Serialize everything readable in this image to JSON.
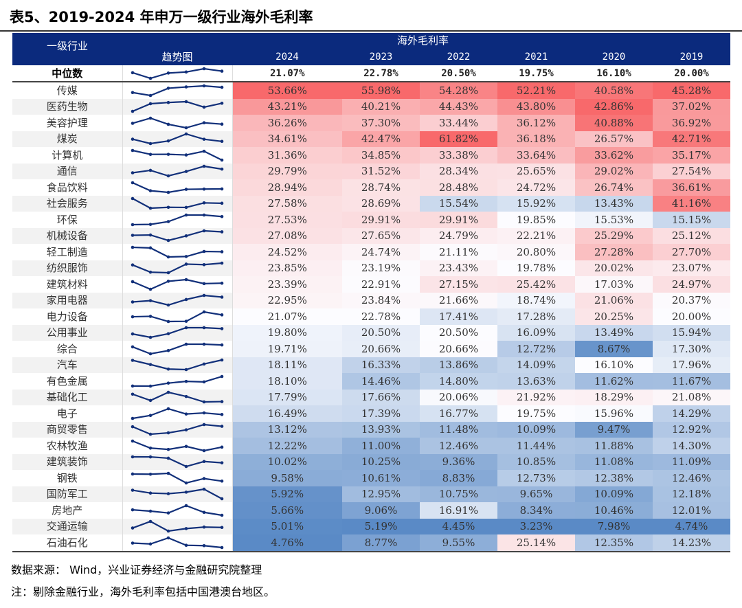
{
  "title": "表5、2019-2024 年申万一级行业海外毛利率",
  "header": {
    "industry": "一级行业",
    "trend": "趋势图",
    "group": "海外毛利率",
    "years": [
      "2024",
      "2023",
      "2022",
      "2021",
      "2020",
      "2019"
    ]
  },
  "colors": {
    "header_bg": "#0b2a7d",
    "high": "#f8696b",
    "mid": "#fcfcff",
    "low": "#5a8ac6",
    "sparkline": "#12307a"
  },
  "median": {
    "label": "中位数",
    "values": [
      "21.07%",
      "22.78%",
      "20.50%",
      "19.75%",
      "16.10%",
      "20.00%"
    ]
  },
  "rows": [
    {
      "name": "传媒",
      "values": [
        "53.66%",
        "55.98%",
        "54.28%",
        "52.21%",
        "40.58%",
        "45.28%"
      ]
    },
    {
      "name": "医药生物",
      "values": [
        "43.21%",
        "40.21%",
        "44.43%",
        "43.80%",
        "42.86%",
        "37.02%"
      ]
    },
    {
      "name": "美容护理",
      "values": [
        "36.26%",
        "37.30%",
        "33.44%",
        "36.12%",
        "40.88%",
        "36.92%"
      ]
    },
    {
      "name": "煤炭",
      "values": [
        "34.61%",
        "42.47%",
        "61.82%",
        "36.18%",
        "26.57%",
        "42.71%"
      ]
    },
    {
      "name": "计算机",
      "values": [
        "31.36%",
        "34.85%",
        "33.38%",
        "33.64%",
        "33.62%",
        "35.17%"
      ]
    },
    {
      "name": "通信",
      "values": [
        "29.79%",
        "31.52%",
        "28.34%",
        "25.65%",
        "29.02%",
        "27.54%"
      ]
    },
    {
      "name": "食品饮料",
      "values": [
        "28.94%",
        "28.74%",
        "28.48%",
        "24.72%",
        "26.74%",
        "36.61%"
      ]
    },
    {
      "name": "社会服务",
      "values": [
        "27.58%",
        "28.69%",
        "15.54%",
        "15.92%",
        "13.43%",
        "41.16%"
      ]
    },
    {
      "name": "环保",
      "values": [
        "27.53%",
        "29.91%",
        "29.91%",
        "19.85%",
        "15.53%",
        "15.15%"
      ]
    },
    {
      "name": "机械设备",
      "values": [
        "27.08%",
        "27.65%",
        "24.79%",
        "22.21%",
        "25.29%",
        "25.12%"
      ]
    },
    {
      "name": "轻工制造",
      "values": [
        "24.52%",
        "24.74%",
        "21.11%",
        "20.80%",
        "27.28%",
        "27.70%"
      ]
    },
    {
      "name": "纺织服饰",
      "values": [
        "23.85%",
        "23.19%",
        "23.43%",
        "19.78%",
        "20.02%",
        "23.07%"
      ]
    },
    {
      "name": "建筑材料",
      "values": [
        "23.39%",
        "22.91%",
        "27.15%",
        "25.42%",
        "17.03%",
        "24.97%"
      ]
    },
    {
      "name": "家用电器",
      "values": [
        "22.95%",
        "23.84%",
        "21.66%",
        "18.74%",
        "21.06%",
        "20.37%"
      ]
    },
    {
      "name": "电力设备",
      "values": [
        "21.07%",
        "22.78%",
        "17.41%",
        "17.28%",
        "20.25%",
        "20.00%"
      ]
    },
    {
      "name": "公用事业",
      "values": [
        "19.80%",
        "20.50%",
        "20.50%",
        "16.09%",
        "13.49%",
        "15.94%"
      ]
    },
    {
      "name": "综合",
      "values": [
        "19.71%",
        "20.66%",
        "20.66%",
        "12.72%",
        "8.67%",
        "17.30%"
      ]
    },
    {
      "name": "汽车",
      "values": [
        "18.11%",
        "16.33%",
        "13.86%",
        "14.09%",
        "16.10%",
        "17.96%"
      ]
    },
    {
      "name": "有色金属",
      "values": [
        "18.10%",
        "14.46%",
        "14.80%",
        "13.63%",
        "11.62%",
        "11.67%"
      ]
    },
    {
      "name": "基础化工",
      "values": [
        "17.79%",
        "17.66%",
        "20.06%",
        "21.92%",
        "18.29%",
        "21.08%"
      ]
    },
    {
      "name": "电子",
      "values": [
        "16.49%",
        "17.39%",
        "16.77%",
        "19.75%",
        "15.96%",
        "14.29%"
      ]
    },
    {
      "name": "商贸零售",
      "values": [
        "13.12%",
        "13.93%",
        "11.48%",
        "10.09%",
        "9.47%",
        "12.92%"
      ]
    },
    {
      "name": "农林牧渔",
      "values": [
        "12.22%",
        "11.00%",
        "12.46%",
        "11.44%",
        "11.88%",
        "14.30%"
      ]
    },
    {
      "name": "建筑装饰",
      "values": [
        "10.02%",
        "10.25%",
        "9.36%",
        "10.85%",
        "11.08%",
        "11.09%"
      ]
    },
    {
      "name": "钢铁",
      "values": [
        "9.58%",
        "10.61%",
        "8.83%",
        "12.73%",
        "12.38%",
        "12.46%"
      ]
    },
    {
      "name": "国防军工",
      "values": [
        "5.92%",
        "12.95%",
        "10.75%",
        "9.65%",
        "10.09%",
        "12.18%"
      ]
    },
    {
      "name": "房地产",
      "values": [
        "5.66%",
        "9.06%",
        "16.91%",
        "8.34%",
        "10.46%",
        "12.01%"
      ]
    },
    {
      "name": "交通运输",
      "values": [
        "5.01%",
        "5.19%",
        "4.45%",
        "3.23%",
        "7.98%",
        "4.74%"
      ]
    },
    {
      "name": "石油石化",
      "values": [
        "4.76%",
        "8.77%",
        "9.55%",
        "25.14%",
        "12.35%",
        "14.23%"
      ]
    }
  ],
  "footer": {
    "source": "数据来源：   Wind，兴业证券经济与金融研究院整理",
    "note": "注：剔除金融行业，海外毛利率包括中国港澳台地区。"
  }
}
